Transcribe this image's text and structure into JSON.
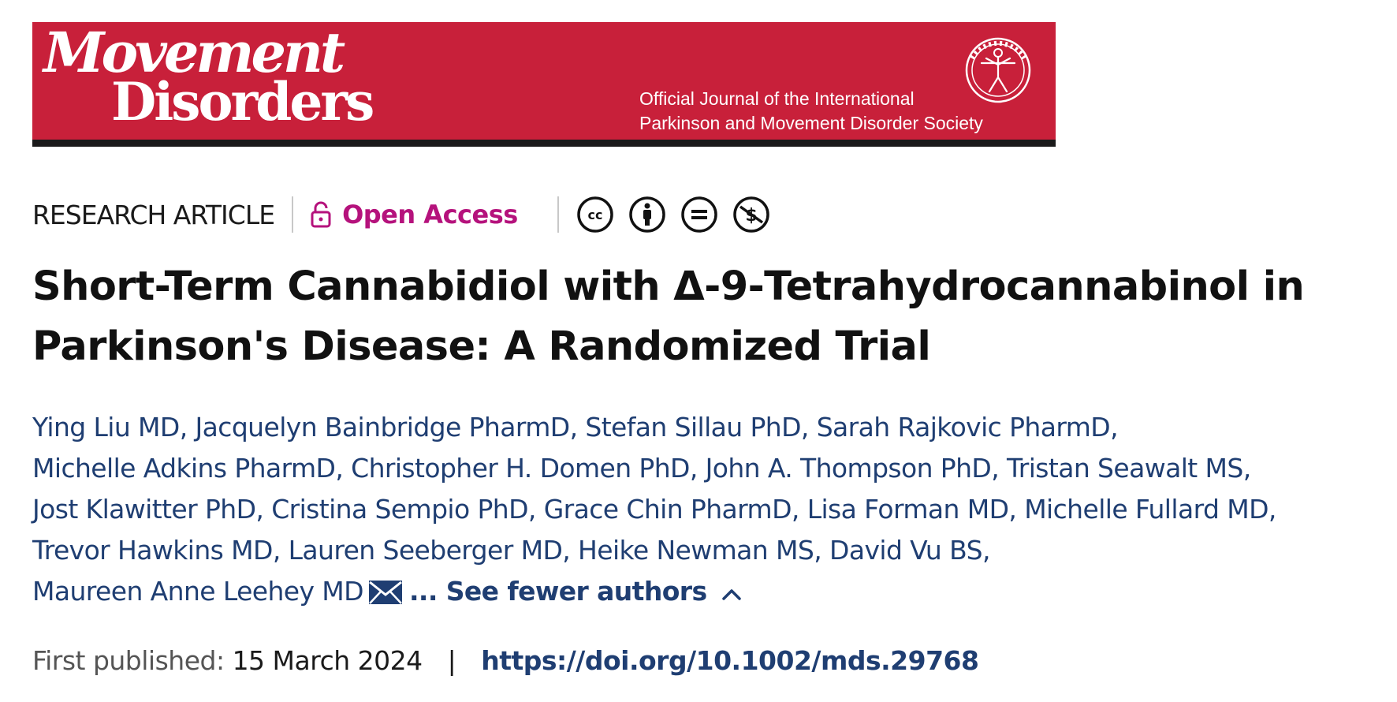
{
  "journal": {
    "name_line1": "Movement",
    "name_line2": "Disorders",
    "society_line1": "Official Journal of the International",
    "society_line2": "Parkinson and Movement Disorder Society"
  },
  "meta": {
    "article_type": "RESEARCH ARTICLE",
    "access_label": "Open Access",
    "license_icons": [
      "cc-icon",
      "by-icon",
      "nd-icon",
      "nc-icon"
    ]
  },
  "title": {
    "line1": "Short-Term Cannabidiol with Δ-9-Tetrahydrocannabinol in",
    "line2": "Parkinson's Disease: A Randomized Trial"
  },
  "authors": [
    [
      "Ying Liu MD",
      "Jacquelyn Bainbridge PharmD",
      "Stefan Sillau PhD",
      "Sarah Rajkovic PharmD"
    ],
    [
      "Michelle Adkins PharmD",
      "Christopher H. Domen PhD",
      "John A. Thompson PhD",
      "Tristan Seawalt MS"
    ],
    [
      "Jost Klawitter PhD",
      "Cristina Sempio PhD",
      "Grace Chin PharmD",
      "Lisa Forman MD",
      "Michelle Fullard MD"
    ],
    [
      "Trevor Hawkins MD",
      "Lauren Seeberger MD",
      "Heike Newman MS",
      "David Vu BS"
    ],
    [
      "Maureen Anne Leehey MD"
    ]
  ],
  "see_fewer_label": "... See fewer authors",
  "published": {
    "label": "First published:",
    "date": "15 March 2024",
    "separator": "|",
    "doi": "https://doi.org/10.1002/mds.29768"
  },
  "colors": {
    "banner": "#c8203a",
    "open_access": "#b5127c",
    "link": "#1f3e72"
  }
}
